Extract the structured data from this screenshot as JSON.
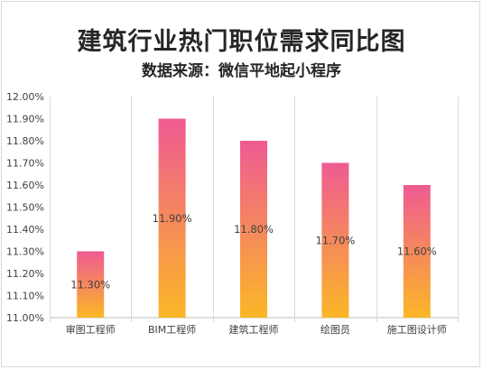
{
  "chart_data": {
    "type": "bar",
    "title": "建筑行业热门职位需求同比图",
    "subtitle": "数据来源：微信平地起小程序",
    "categories": [
      "审图工程师",
      "BIM工程师",
      "建筑工程师",
      "绘图员",
      "施工图设计师"
    ],
    "values": [
      11.3,
      11.9,
      11.8,
      11.7,
      11.6
    ],
    "value_labels": [
      "11.30%",
      "11.90%",
      "11.80%",
      "11.70%",
      "11.60%"
    ],
    "ylim": [
      11.0,
      12.0
    ],
    "y_ticks": [
      "11.00%",
      "11.10%",
      "11.20%",
      "11.30%",
      "11.40%",
      "11.50%",
      "11.60%",
      "11.70%",
      "11.80%",
      "11.90%",
      "12.00%"
    ],
    "grid": "vertical separators",
    "legend": "none",
    "colors": {
      "bar_top": "#ef5a93",
      "bar_bottom": "#fbb726",
      "grid": "#d9d9d9",
      "axis": "#bfbfbf",
      "text": "#404040",
      "title": "#262626"
    }
  }
}
